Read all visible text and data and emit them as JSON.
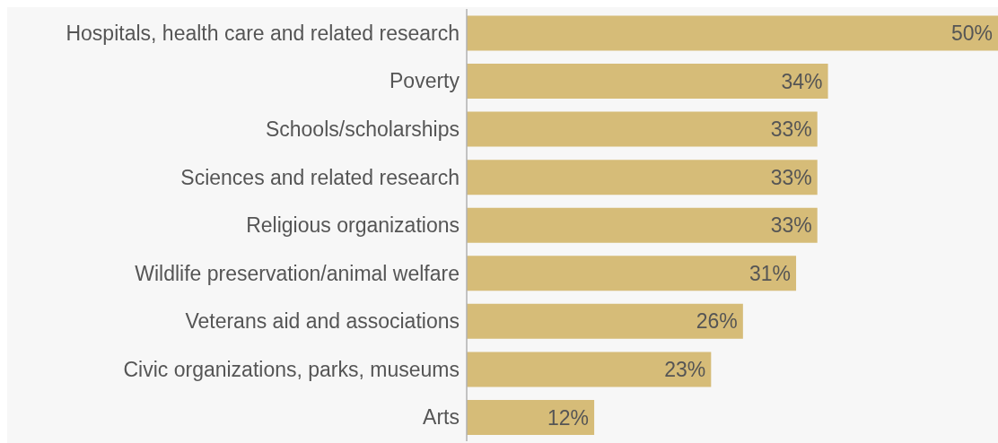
{
  "chart_data": {
    "type": "bar",
    "orientation": "horizontal",
    "categories": [
      "Hospitals, health care and related research",
      "Poverty",
      "Schools/scholarships",
      "Sciences and related research",
      "Religious organizations",
      "Wildlife preservation/animal welfare",
      "Veterans aid and associations",
      "Civic organizations, parks, museums",
      "Arts"
    ],
    "values": [
      50,
      34,
      33,
      33,
      33,
      31,
      26,
      23,
      12
    ],
    "value_labels": [
      "50%",
      "34%",
      "33%",
      "33%",
      "33%",
      "31%",
      "26%",
      "23%",
      "12%"
    ],
    "color": "#d6bc78"
  }
}
